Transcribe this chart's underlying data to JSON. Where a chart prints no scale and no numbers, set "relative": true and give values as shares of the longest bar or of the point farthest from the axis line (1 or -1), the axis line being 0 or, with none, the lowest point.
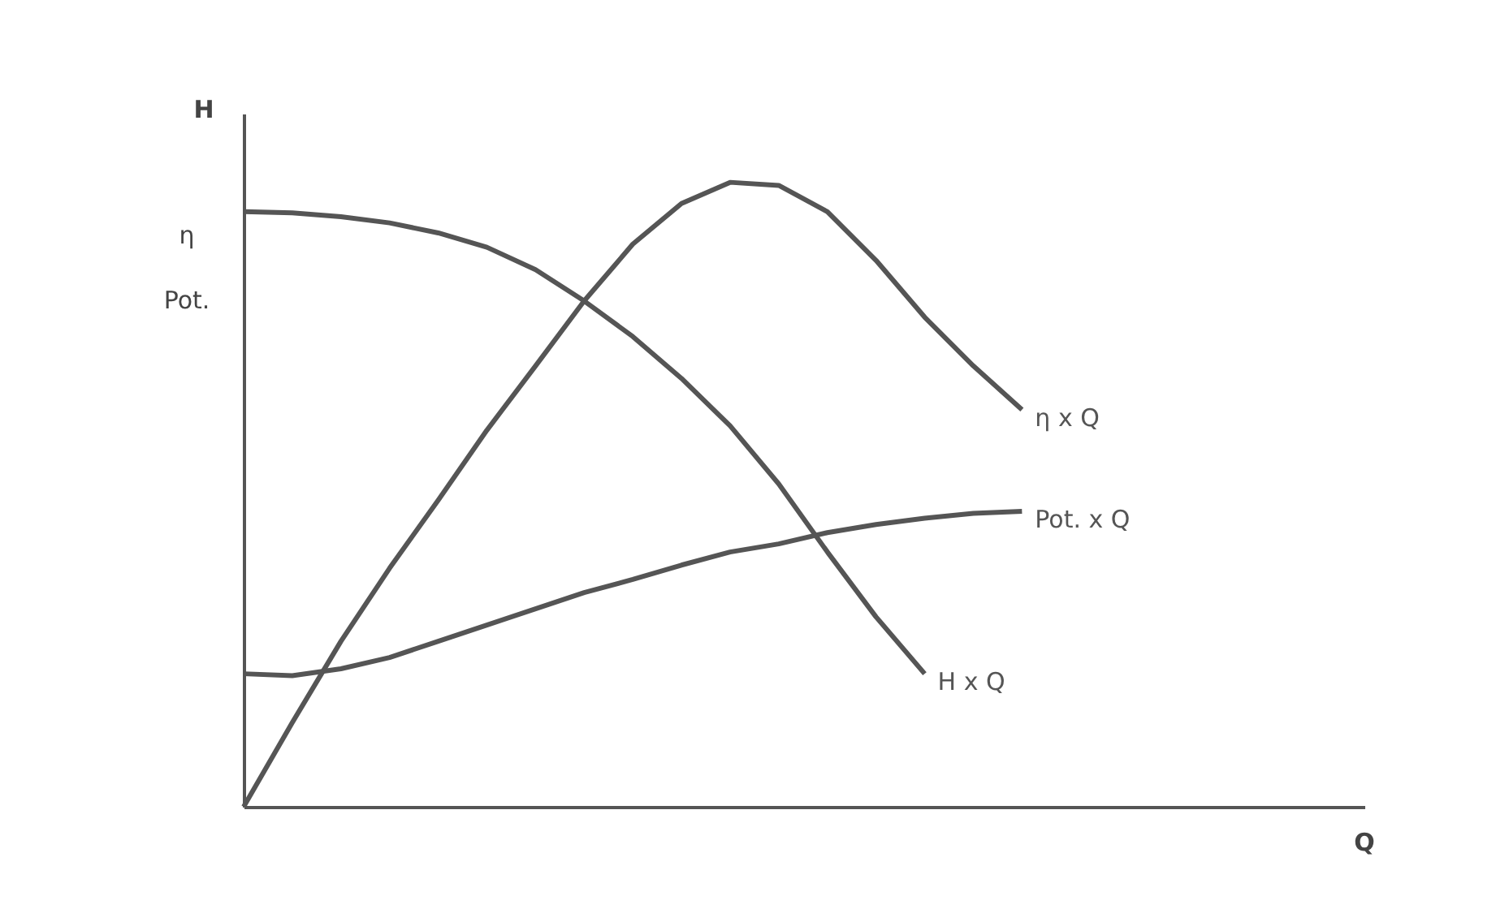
{
  "chart_data": {
    "type": "line",
    "relative": true,
    "ylabel": "H",
    "grid": false,
    "annotations": [
      "η",
      "Pot.",
      "Q"
    ],
    "categories": [
      null,
      null,
      null,
      null,
      null,
      null,
      null,
      null,
      null,
      null,
      null,
      null,
      null,
      null,
      null,
      null,
      null
    ],
    "series": [
      {
        "name": "H x Q",
        "color": "#555555",
        "values": [
          0.953,
          0.951,
          0.945,
          0.935,
          0.919,
          0.896,
          0.86,
          0.81,
          0.753,
          0.686,
          0.61,
          0.517,
          0.408,
          0.304,
          0.213,
          null,
          null
        ]
      },
      {
        "name": "η x Q",
        "color": "#555555",
        "values": [
          0,
          0.135,
          0.265,
          0.382,
          0.491,
          0.603,
          0.706,
          0.81,
          0.901,
          0.966,
          1,
          0.995,
          0.953,
          0.875,
          0.784,
          0.706,
          0.636
        ]
      },
      {
        "name": "Pot. x Q",
        "color": "#555555",
        "values": [
          0.213,
          0.21,
          0.221,
          0.239,
          0.265,
          0.291,
          0.317,
          0.343,
          0.364,
          0.387,
          0.408,
          0.421,
          0.439,
          0.452,
          0.462,
          0.47,
          0.473
        ]
      }
    ]
  }
}
